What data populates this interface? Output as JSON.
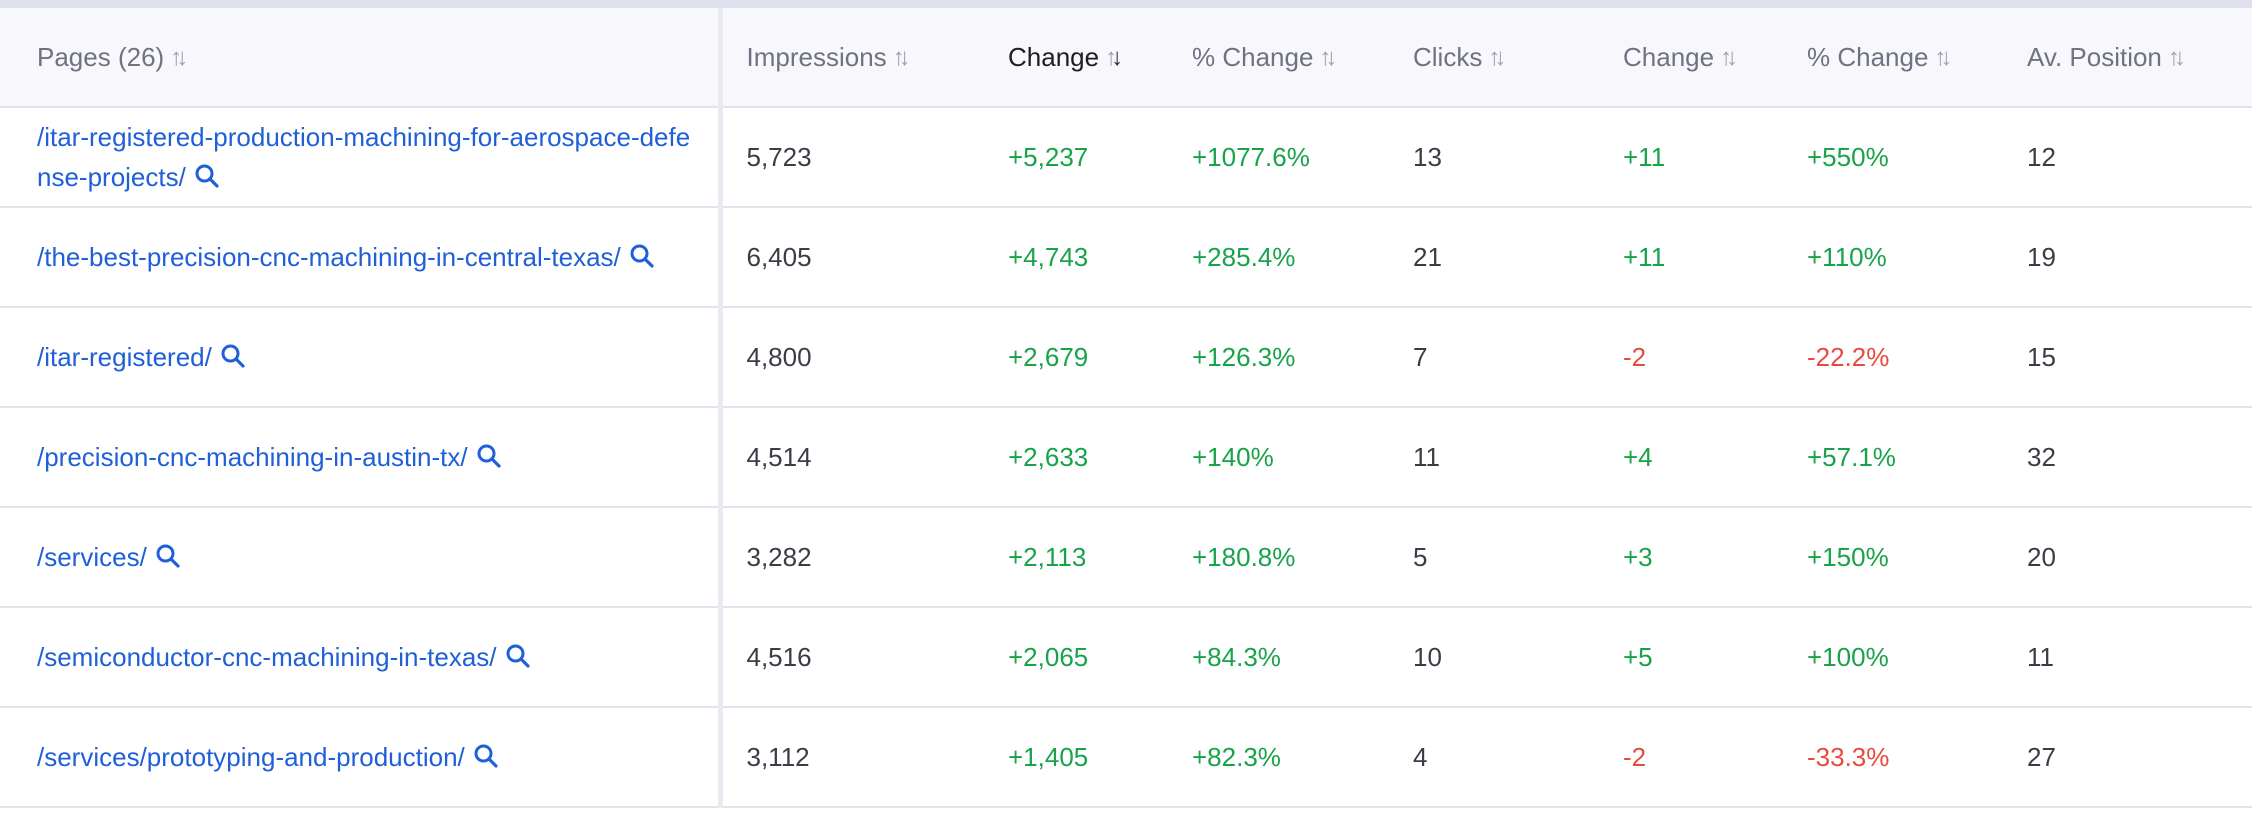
{
  "colors": {
    "link": "#1f5fd8",
    "positive": "#18a34a",
    "negative": "#e84a3f",
    "header_bg": "#f8f8fc"
  },
  "icons": {
    "sort": "sort-arrows-icon",
    "search": "search-icon"
  },
  "header": {
    "pages": "Pages (26)",
    "impressions": "Impressions",
    "imp_change": "Change",
    "imp_pct_change": "% Change",
    "clicks": "Clicks",
    "clk_change": "Change",
    "clk_pct_change": "% Change",
    "av_position": "Av. Position",
    "sorted_column": "imp_change",
    "sort_direction": "descending"
  },
  "rows": [
    {
      "page": "/itar-registered-production-machining-for-aerospace-defense-projects/",
      "impressions": "5,723",
      "imp_change": "+5,237",
      "imp_pct": "+1077.6%",
      "clicks": "13",
      "clk_change": "+11",
      "clk_pct": "+550%",
      "position": "12"
    },
    {
      "page": "/the-best-precision-cnc-machining-in-central-texas/",
      "impressions": "6,405",
      "imp_change": "+4,743",
      "imp_pct": "+285.4%",
      "clicks": "21",
      "clk_change": "+11",
      "clk_pct": "+110%",
      "position": "19"
    },
    {
      "page": "/itar-registered/",
      "impressions": "4,800",
      "imp_change": "+2,679",
      "imp_pct": "+126.3%",
      "clicks": "7",
      "clk_change": "-2",
      "clk_pct": "-22.2%",
      "position": "15"
    },
    {
      "page": "/precision-cnc-machining-in-austin-tx/",
      "impressions": "4,514",
      "imp_change": "+2,633",
      "imp_pct": "+140%",
      "clicks": "11",
      "clk_change": "+4",
      "clk_pct": "+57.1%",
      "position": "32"
    },
    {
      "page": "/services/",
      "impressions": "3,282",
      "imp_change": "+2,113",
      "imp_pct": "+180.8%",
      "clicks": "5",
      "clk_change": "+3",
      "clk_pct": "+150%",
      "position": "20"
    },
    {
      "page": "/semiconductor-cnc-machining-in-texas/",
      "impressions": "4,516",
      "imp_change": "+2,065",
      "imp_pct": "+84.3%",
      "clicks": "10",
      "clk_change": "+5",
      "clk_pct": "+100%",
      "position": "11"
    },
    {
      "page": "/services/prototyping-and-production/",
      "impressions": "3,112",
      "imp_change": "+1,405",
      "imp_pct": "+82.3%",
      "clicks": "4",
      "clk_change": "-2",
      "clk_pct": "-33.3%",
      "position": "27"
    }
  ]
}
